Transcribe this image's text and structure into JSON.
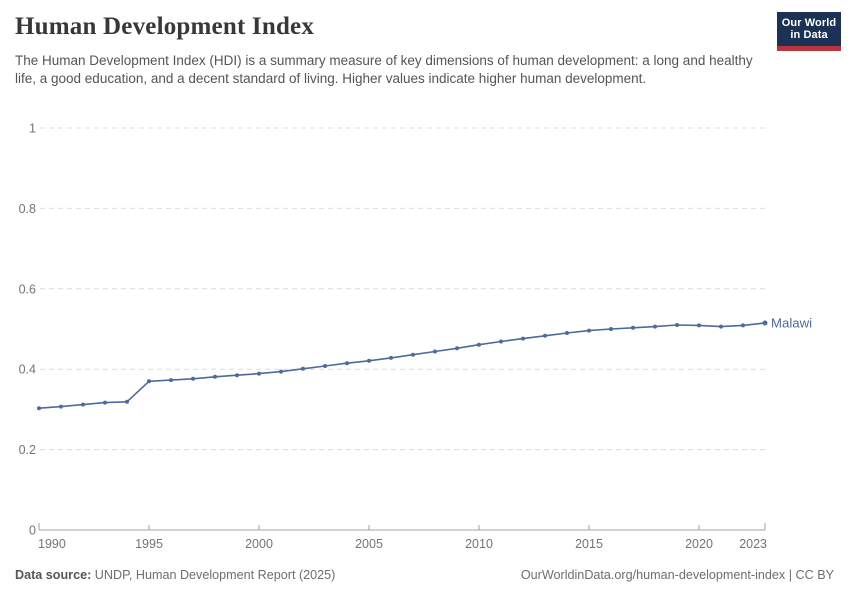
{
  "header": {
    "title": "Human Development Index",
    "subtitle": "The Human Development Index (HDI) is a summary measure of key dimensions of human development: a long and healthy life, a good education, and a decent standard of living. Higher values indicate higher human development.",
    "logo": {
      "line1": "Our World",
      "line2": "in Data",
      "bg_color": "#1c3254",
      "bar_color": "#b8343f"
    }
  },
  "footer": {
    "source_label": "Data source:",
    "source_text": " UNDP, Human Development Report (2025)",
    "attribution": "OurWorldinData.org/human-development-index | CC BY"
  },
  "chart_data": {
    "type": "line",
    "title": "Human Development Index",
    "entity": "Malawi",
    "line_color": "#4c6a9c",
    "label_color": "#4c6a9c",
    "grid_color": "#dcdcdc",
    "axis_color": "#a3a3a3",
    "tick_text_color": "#747474",
    "grid": "horizontal-dashed",
    "legend": "end-of-line-label",
    "xlabel": "",
    "ylabel": "",
    "xlim": [
      1990,
      2023
    ],
    "ylim": [
      0,
      1
    ],
    "xticks": [
      1990,
      1995,
      2000,
      2005,
      2010,
      2015,
      2020,
      2023
    ],
    "yticks": [
      0,
      0.2,
      0.4,
      0.6,
      0.8,
      1
    ],
    "x": [
      1990,
      1991,
      1992,
      1993,
      1994,
      1995,
      1996,
      1997,
      1998,
      1999,
      2000,
      2001,
      2002,
      2003,
      2004,
      2005,
      2006,
      2007,
      2008,
      2009,
      2010,
      2011,
      2012,
      2013,
      2014,
      2015,
      2016,
      2017,
      2018,
      2019,
      2020,
      2021,
      2022,
      2023
    ],
    "y": [
      0.303,
      0.307,
      0.312,
      0.317,
      0.319,
      0.37,
      0.373,
      0.376,
      0.381,
      0.385,
      0.389,
      0.394,
      0.401,
      0.408,
      0.415,
      0.421,
      0.428,
      0.436,
      0.444,
      0.452,
      0.461,
      0.469,
      0.476,
      0.483,
      0.49,
      0.496,
      0.5,
      0.503,
      0.506,
      0.51,
      0.509,
      0.506,
      0.509,
      0.515
    ]
  }
}
